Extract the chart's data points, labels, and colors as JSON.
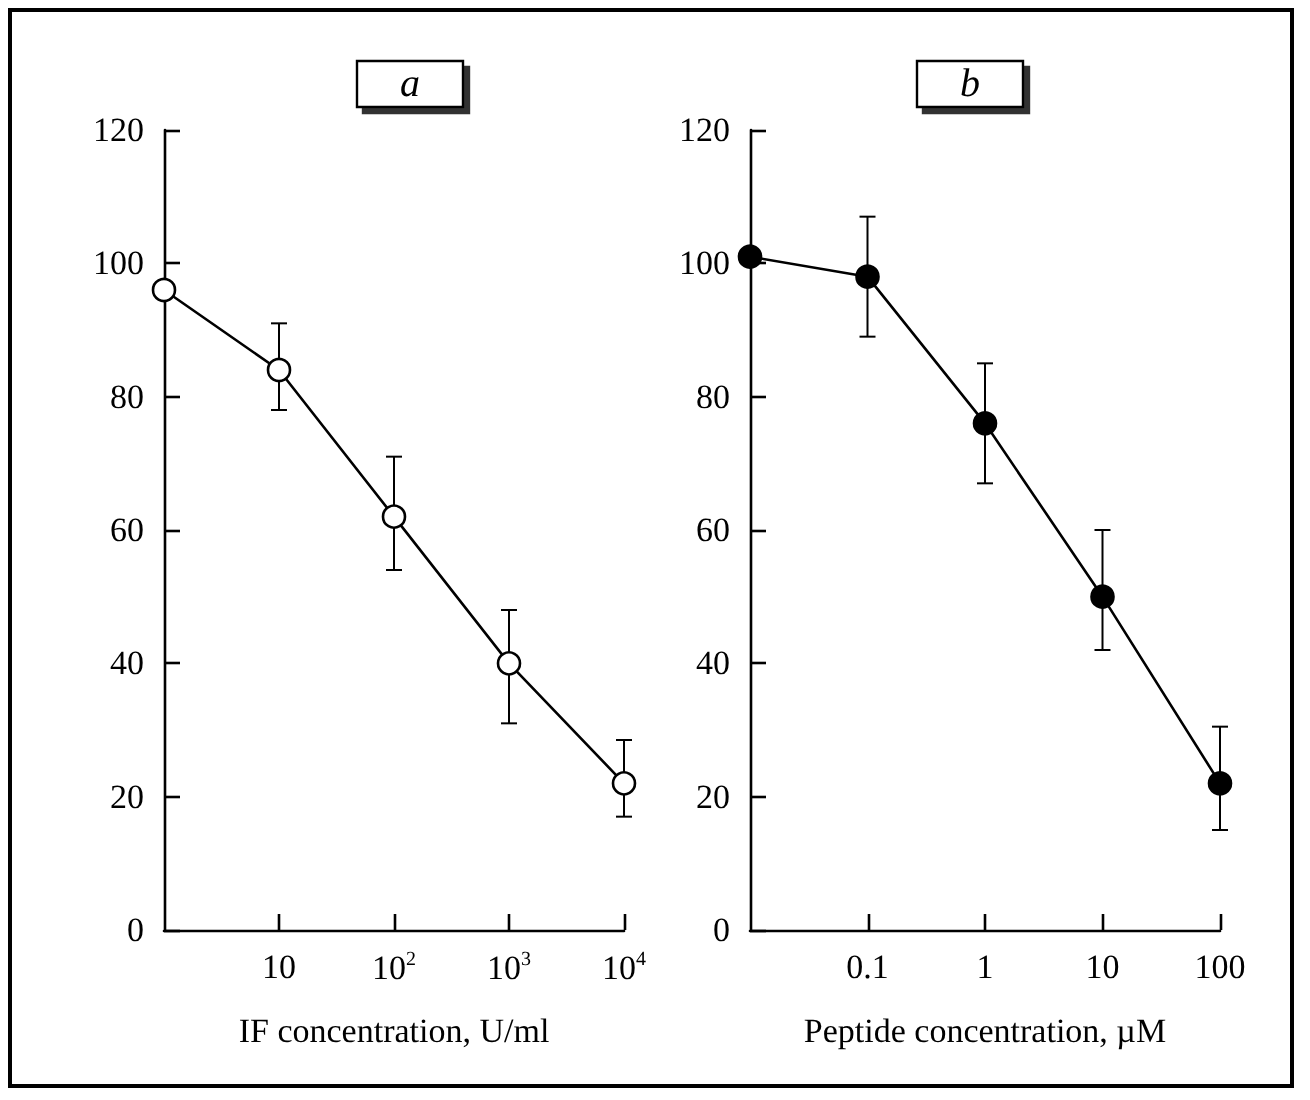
{
  "chart_data": [
    {
      "type": "line",
      "title": "a",
      "xlabel": "IF concentration, U/ml",
      "log": "x",
      "xlim": [
        1,
        10000
      ],
      "xticks": [
        {
          "value": 10,
          "label": "10"
        },
        {
          "value": 100,
          "label": "10$^{2}$"
        },
        {
          "value": 1000,
          "label": "10$^{3}$"
        },
        {
          "value": 10000,
          "label": "10$^{4}$"
        }
      ],
      "ylim": [
        0,
        120
      ],
      "yticks": [
        0,
        20,
        40,
        60,
        80,
        100,
        120
      ],
      "grid": false,
      "marker": "circle",
      "line_style": "solid",
      "x": [
        1,
        10,
        100,
        1000,
        10000
      ],
      "series": [
        {
          "color": "#000000",
          "colors": [
            "#ffffff",
            "#ffffff",
            "#ffffff",
            "#ffffff",
            "#ffffff"
          ],
          "values": [
            96,
            84,
            62,
            40,
            22
          ],
          "errors": [
            null,
            [
              78,
              91
            ],
            [
              54,
              71
            ],
            [
              31,
              48
            ],
            [
              17,
              28.5
            ]
          ]
        }
      ]
    },
    {
      "type": "line",
      "title": "b",
      "xlabel": "Peptide concentration, µM",
      "log": "x",
      "xlim": [
        0.01,
        100
      ],
      "xticks": [
        0.1,
        1,
        10,
        100
      ],
      "ylim": [
        0,
        120
      ],
      "yticks": [
        0,
        20,
        40,
        60,
        80,
        100,
        120
      ],
      "grid": false,
      "marker": "circle",
      "line_style": "solid",
      "x": [
        0.01,
        0.1,
        1,
        10,
        100
      ],
      "series": [
        {
          "color": "#000000",
          "colors": [
            "#000000",
            "#000000",
            "#000000",
            "#000000",
            "#000000"
          ],
          "values": [
            101,
            98,
            76,
            50,
            22
          ],
          "errors": [
            null,
            [
              89,
              107
            ],
            [
              67,
              85
            ],
            [
              42,
              60
            ],
            [
              15,
              30.5
            ]
          ]
        }
      ]
    }
  ]
}
